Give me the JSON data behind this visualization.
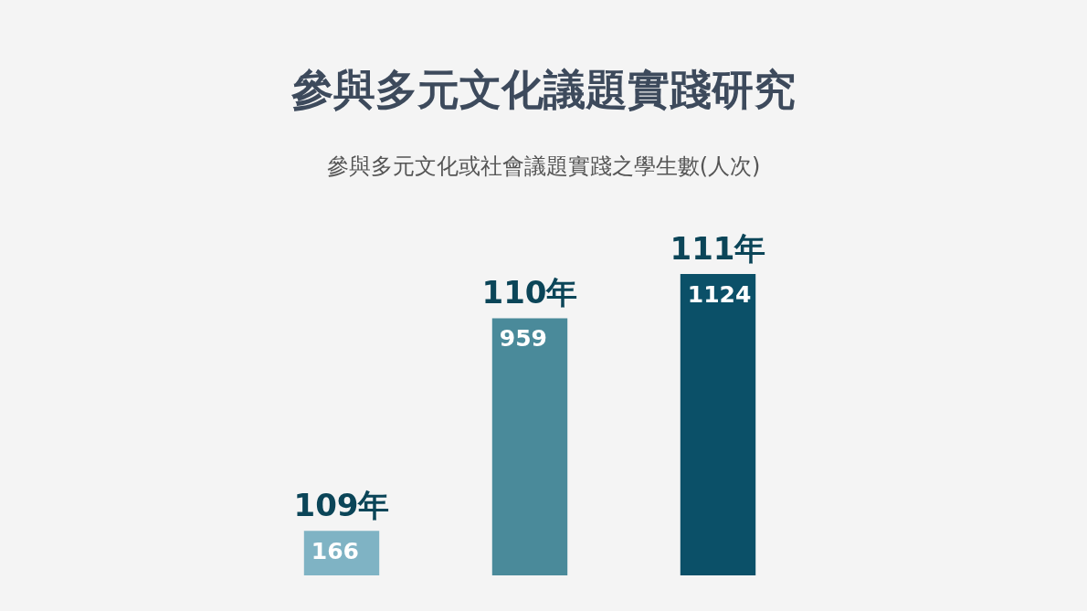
{
  "chart_data": {
    "type": "bar",
    "title": "參與多元文化議題實踐研究",
    "subtitle": "參與多元文化或社會議題實踐之學生數(人次)",
    "categories": [
      "109年",
      "110年",
      "111年"
    ],
    "values": [
      166,
      959,
      1124
    ],
    "colors": [
      "#7fb3c4",
      "#4a8a9a",
      "#0b5068"
    ],
    "data_labels": true
  }
}
